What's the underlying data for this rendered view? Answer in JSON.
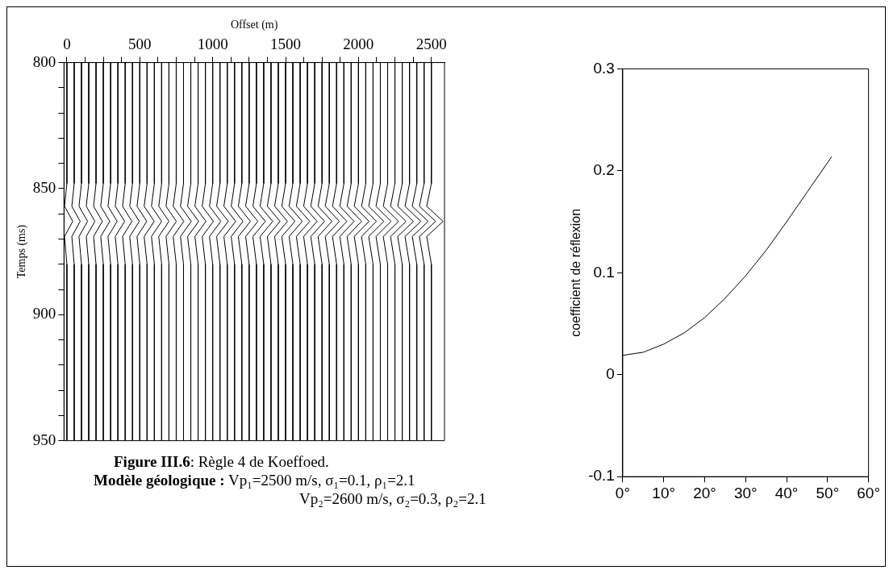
{
  "chart_data": [
    {
      "type": "line",
      "xlabel": "Offset (m)",
      "ylabel": "Temps (ms)",
      "xlim": [
        -20,
        2590
      ],
      "ylim": [
        950,
        800
      ],
      "xticks": [
        0,
        {
          "value": 125,
          "label": null
        },
        {
          "value": 250,
          "label": null
        },
        {
          "value": 375,
          "label": null
        },
        500,
        {
          "value": 625,
          "label": null
        },
        {
          "value": 750,
          "label": null
        },
        {
          "value": 875,
          "label": null
        },
        1000,
        {
          "value": 1125,
          "label": null
        },
        {
          "value": 1250,
          "label": null
        },
        {
          "value": 1375,
          "label": null
        },
        1500,
        {
          "value": 1625,
          "label": null
        },
        {
          "value": 1750,
          "label": null
        },
        {
          "value": 1875,
          "label": null
        },
        2000,
        {
          "value": 2125,
          "label": null
        },
        {
          "value": 2250,
          "label": null
        },
        {
          "value": 2375,
          "label": null
        },
        2500
      ],
      "yticks": [
        800,
        {
          "value": 810,
          "label": null
        },
        {
          "value": 820,
          "label": null
        },
        {
          "value": 830,
          "label": null
        },
        {
          "value": 840,
          "label": null
        },
        850,
        {
          "value": 860,
          "label": null
        },
        {
          "value": 870,
          "label": null
        },
        {
          "value": 880,
          "label": null
        },
        {
          "value": 890,
          "label": null
        },
        900,
        {
          "value": 910,
          "label": null
        },
        {
          "value": 920,
          "label": null
        },
        {
          "value": 930,
          "label": null
        },
        {
          "value": 940,
          "label": null
        },
        950
      ],
      "grid": false,
      "annotations": [
        "Figure III.6",
        ": Règle 4 de Koeffoed.",
        "Modèle géologique :",
        " Vp₁=2500 m/s, σ₁=0.1, ρ₁=2.1",
        "Vp₂=2600 m/s, σ₂=0.3, ρ₂=2.1"
      ],
      "series": [
        {
          "color": "#000000",
          "x": [
            0,
            0,
            -16,
            40,
            -16,
            0,
            0
          ],
          "values": [
            800,
            848,
            857,
            863,
            869,
            880,
            950
          ]
        },
        {
          "color": "#000000",
          "x": [
            50,
            50,
            34,
            91,
            34,
            50,
            50
          ],
          "values": [
            800,
            848,
            857,
            863,
            869,
            880,
            950
          ]
        },
        {
          "color": "#000000",
          "x": [
            100,
            100,
            83,
            142,
            83,
            100,
            100
          ],
          "values": [
            800,
            848,
            857,
            863,
            869,
            880,
            950
          ]
        },
        {
          "color": "#000000",
          "x": [
            150,
            150,
            133,
            192,
            133,
            150,
            150
          ],
          "values": [
            800,
            848,
            857,
            863,
            869,
            880,
            950
          ]
        },
        {
          "color": "#000000",
          "x": [
            200,
            200,
            183,
            243,
            183,
            200,
            200
          ],
          "values": [
            800,
            848,
            857,
            863,
            869,
            880,
            950
          ]
        },
        {
          "color": "#000000",
          "x": [
            250,
            250,
            232,
            294,
            232,
            250,
            250
          ],
          "values": [
            800,
            848,
            857,
            863,
            869,
            880,
            950
          ]
        },
        {
          "color": "#000000",
          "x": [
            300,
            300,
            282,
            345,
            282,
            300,
            300
          ],
          "values": [
            800,
            848,
            857,
            863,
            869,
            880,
            950
          ]
        },
        {
          "color": "#000000",
          "x": [
            350,
            350,
            332,
            396,
            332,
            350,
            350
          ],
          "values": [
            800,
            848,
            857,
            863,
            869,
            880,
            950
          ]
        },
        {
          "color": "#000000",
          "x": [
            400,
            400,
            382,
            446,
            382,
            400,
            400
          ],
          "values": [
            800,
            848,
            857,
            863,
            869,
            880,
            950
          ]
        },
        {
          "color": "#000000",
          "x": [
            450,
            450,
            431,
            497,
            431,
            450,
            450
          ],
          "values": [
            800,
            848,
            857,
            863,
            869,
            880,
            950
          ]
        },
        {
          "color": "#000000",
          "x": [
            500,
            500,
            481,
            548,
            481,
            500,
            500
          ],
          "values": [
            800,
            848,
            857,
            863,
            869,
            880,
            950
          ]
        },
        {
          "color": "#000000",
          "x": [
            550,
            550,
            530,
            599,
            530,
            550,
            550
          ],
          "values": [
            800,
            848,
            857,
            863,
            869,
            880,
            950
          ]
        },
        {
          "color": "#000000",
          "x": [
            600,
            600,
            580,
            650,
            580,
            600,
            600
          ],
          "values": [
            800,
            848,
            857,
            863,
            869,
            880,
            950
          ]
        },
        {
          "color": "#000000",
          "x": [
            650,
            650,
            630,
            700,
            630,
            650,
            650
          ],
          "values": [
            800,
            848,
            857,
            863,
            869,
            880,
            950
          ]
        },
        {
          "color": "#000000",
          "x": [
            700,
            700,
            680,
            751,
            680,
            700,
            700
          ],
          "values": [
            800,
            848,
            857,
            863,
            869,
            880,
            950
          ]
        },
        {
          "color": "#000000",
          "x": [
            750,
            750,
            729,
            802,
            729,
            750,
            750
          ],
          "values": [
            800,
            848,
            857,
            863,
            869,
            880,
            950
          ]
        },
        {
          "color": "#000000",
          "x": [
            800,
            800,
            779,
            853,
            779,
            800,
            800
          ],
          "values": [
            800,
            848,
            857,
            863,
            869,
            880,
            950
          ]
        },
        {
          "color": "#000000",
          "x": [
            850,
            850,
            828,
            904,
            828,
            850,
            850
          ],
          "values": [
            800,
            848,
            857,
            863,
            869,
            880,
            950
          ]
        },
        {
          "color": "#000000",
          "x": [
            900,
            900,
            878,
            954,
            878,
            900,
            900
          ],
          "values": [
            800,
            848,
            857,
            863,
            869,
            880,
            950
          ]
        },
        {
          "color": "#000000",
          "x": [
            950,
            950,
            928,
            1005,
            928,
            950,
            950
          ],
          "values": [
            800,
            848,
            857,
            863,
            869,
            880,
            950
          ]
        },
        {
          "color": "#000000",
          "x": [
            1000,
            1000,
            978,
            1056,
            978,
            1000,
            1000
          ],
          "values": [
            800,
            848,
            857,
            863,
            869,
            880,
            950
          ]
        },
        {
          "color": "#000000",
          "x": [
            1050,
            1050,
            1027,
            1107,
            1027,
            1050,
            1050
          ],
          "values": [
            800,
            848,
            857,
            863,
            869,
            880,
            950
          ]
        },
        {
          "color": "#000000",
          "x": [
            1100,
            1100,
            1077,
            1158,
            1077,
            1100,
            1100
          ],
          "values": [
            800,
            848,
            857,
            863,
            869,
            880,
            950
          ]
        },
        {
          "color": "#000000",
          "x": [
            1150,
            1150,
            1127,
            1208,
            1127,
            1150,
            1150
          ],
          "values": [
            800,
            848,
            857,
            863,
            869,
            880,
            950
          ]
        },
        {
          "color": "#000000",
          "x": [
            1200,
            1200,
            1176,
            1259,
            1176,
            1200,
            1200
          ],
          "values": [
            800,
            848,
            857,
            863,
            869,
            880,
            950
          ]
        },
        {
          "color": "#000000",
          "x": [
            1250,
            1250,
            1226,
            1310,
            1226,
            1250,
            1250
          ],
          "values": [
            800,
            848,
            857,
            863,
            869,
            880,
            950
          ]
        },
        {
          "color": "#000000",
          "x": [
            1300,
            1300,
            1276,
            1361,
            1276,
            1300,
            1300
          ],
          "values": [
            800,
            848,
            857,
            863,
            869,
            880,
            950
          ]
        },
        {
          "color": "#000000",
          "x": [
            1350,
            1350,
            1325,
            1412,
            1325,
            1350,
            1350
          ],
          "values": [
            800,
            848,
            857,
            863,
            869,
            880,
            950
          ]
        },
        {
          "color": "#000000",
          "x": [
            1400,
            1400,
            1375,
            1462,
            1375,
            1400,
            1400
          ],
          "values": [
            800,
            848,
            857,
            863,
            869,
            880,
            950
          ]
        },
        {
          "color": "#000000",
          "x": [
            1450,
            1450,
            1425,
            1513,
            1425,
            1450,
            1450
          ],
          "values": [
            800,
            848,
            857,
            863,
            869,
            880,
            950
          ]
        },
        {
          "color": "#000000",
          "x": [
            1500,
            1500,
            1474,
            1564,
            1474,
            1500,
            1500
          ],
          "values": [
            800,
            848,
            857,
            863,
            869,
            880,
            950
          ]
        },
        {
          "color": "#000000",
          "x": [
            1550,
            1550,
            1524,
            1615,
            1524,
            1550,
            1550
          ],
          "values": [
            800,
            848,
            857,
            863,
            869,
            880,
            950
          ]
        },
        {
          "color": "#000000",
          "x": [
            1600,
            1600,
            1574,
            1666,
            1574,
            1600,
            1600
          ],
          "values": [
            800,
            848,
            857,
            863,
            869,
            880,
            950
          ]
        },
        {
          "color": "#000000",
          "x": [
            1650,
            1650,
            1624,
            1716,
            1624,
            1650,
            1650
          ],
          "values": [
            800,
            848,
            857,
            863,
            869,
            880,
            950
          ]
        },
        {
          "color": "#000000",
          "x": [
            1700,
            1700,
            1673,
            1767,
            1673,
            1700,
            1700
          ],
          "values": [
            800,
            848,
            857,
            863,
            869,
            880,
            950
          ]
        },
        {
          "color": "#000000",
          "x": [
            1750,
            1750,
            1723,
            1818,
            1723,
            1750,
            1750
          ],
          "values": [
            800,
            848,
            857,
            863,
            869,
            880,
            950
          ]
        },
        {
          "color": "#000000",
          "x": [
            1800,
            1800,
            1772,
            1869,
            1772,
            1800,
            1800
          ],
          "values": [
            800,
            848,
            857,
            863,
            869,
            880,
            950
          ]
        },
        {
          "color": "#000000",
          "x": [
            1850,
            1850,
            1822,
            1920,
            1822,
            1850,
            1850
          ],
          "values": [
            800,
            848,
            857,
            863,
            869,
            880,
            950
          ]
        },
        {
          "color": "#000000",
          "x": [
            1900,
            1900,
            1872,
            1970,
            1872,
            1900,
            1900
          ],
          "values": [
            800,
            848,
            857,
            863,
            869,
            880,
            950
          ]
        },
        {
          "color": "#000000",
          "x": [
            1950,
            1950,
            1922,
            2021,
            1922,
            1950,
            1950
          ],
          "values": [
            800,
            848,
            857,
            863,
            869,
            880,
            950
          ]
        },
        {
          "color": "#000000",
          "x": [
            2000,
            2000,
            1971,
            2072,
            1971,
            2000,
            2000
          ],
          "values": [
            800,
            848,
            857,
            863,
            869,
            880,
            950
          ]
        },
        {
          "color": "#000000",
          "x": [
            2050,
            2050,
            2021,
            2123,
            2021,
            2050,
            2050
          ],
          "values": [
            800,
            848,
            857,
            863,
            869,
            880,
            950
          ]
        },
        {
          "color": "#000000",
          "x": [
            2100,
            2100,
            2070,
            2174,
            2070,
            2100,
            2100
          ],
          "values": [
            800,
            848,
            857,
            863,
            869,
            880,
            950
          ]
        },
        {
          "color": "#000000",
          "x": [
            2150,
            2150,
            2120,
            2224,
            2120,
            2150,
            2150
          ],
          "values": [
            800,
            848,
            857,
            863,
            869,
            880,
            950
          ]
        },
        {
          "color": "#000000",
          "x": [
            2200,
            2200,
            2170,
            2275,
            2170,
            2200,
            2200
          ],
          "values": [
            800,
            848,
            857,
            863,
            869,
            880,
            950
          ]
        },
        {
          "color": "#000000",
          "x": [
            2250,
            2250,
            2220,
            2326,
            2220,
            2250,
            2250
          ],
          "values": [
            800,
            848,
            857,
            863,
            869,
            880,
            950
          ]
        },
        {
          "color": "#000000",
          "x": [
            2300,
            2300,
            2269,
            2377,
            2269,
            2300,
            2300
          ],
          "values": [
            800,
            848,
            857,
            863,
            869,
            880,
            950
          ]
        },
        {
          "color": "#000000",
          "x": [
            2350,
            2350,
            2319,
            2428,
            2319,
            2350,
            2350
          ],
          "values": [
            800,
            848,
            857,
            863,
            869,
            880,
            950
          ]
        },
        {
          "color": "#000000",
          "x": [
            2400,
            2400,
            2369,
            2478,
            2369,
            2400,
            2400
          ],
          "values": [
            800,
            848,
            857,
            863,
            869,
            880,
            950
          ]
        },
        {
          "color": "#000000",
          "x": [
            2450,
            2450,
            2418,
            2529,
            2418,
            2450,
            2450
          ],
          "values": [
            800,
            848,
            857,
            863,
            869,
            880,
            950
          ]
        },
        {
          "color": "#000000",
          "x": [
            2500,
            2500,
            2468,
            2580,
            2468,
            2500,
            2500
          ],
          "values": [
            800,
            848,
            857,
            863,
            869,
            880,
            950
          ]
        }
      ]
    },
    {
      "type": "line",
      "ylabel": "coefficient de réflexion",
      "xlim": [
        0,
        60
      ],
      "ylim": [
        -0.1,
        0.3
      ],
      "xticks": [
        {
          "value": 0,
          "label": "0°"
        },
        {
          "value": 10,
          "label": "10°"
        },
        {
          "value": 20,
          "label": "20°"
        },
        {
          "value": 30,
          "label": "30°"
        },
        {
          "value": 40,
          "label": "40°"
        },
        {
          "value": 50,
          "label": "50°"
        },
        {
          "value": 60,
          "label": "60°"
        }
      ],
      "yticks": [
        -0.1,
        0,
        0.1,
        0.2,
        0.3
      ],
      "grid": false,
      "series": [
        {
          "color": "#000000",
          "x": [
            0,
            5,
            10,
            15,
            20,
            25,
            30,
            35,
            40,
            45,
            50,
            51
          ],
          "values": [
            0.019,
            0.022,
            0.03,
            0.041,
            0.056,
            0.075,
            0.097,
            0.122,
            0.15,
            0.179,
            0.208,
            0.214
          ]
        }
      ]
    }
  ]
}
